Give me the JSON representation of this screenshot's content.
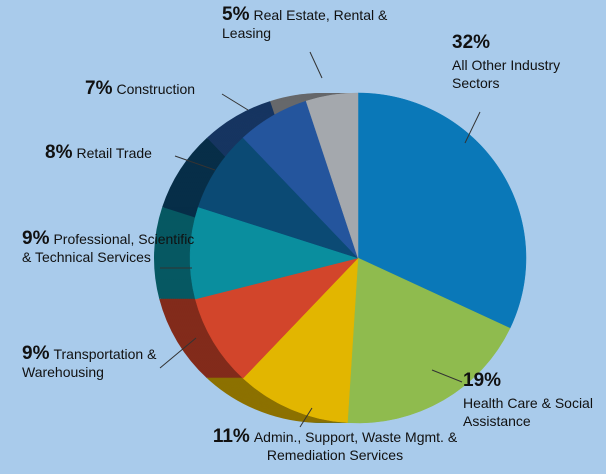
{
  "chart_data": {
    "type": "pie",
    "categories": [
      "All Other Industry Sectors",
      "Health Care & Social Assistance",
      "Admin., Support, Waste Mgmt. & Remediation Services",
      "Transportation & Warehousing",
      "Professional, Scientific & Technical Services",
      "Retail Trade",
      "Construction",
      "Real Estate, Rental & Leasing"
    ],
    "values": [
      32,
      19,
      11,
      9,
      9,
      8,
      7,
      5
    ],
    "value_labels": [
      "32%",
      "19%",
      "11%",
      "9%",
      "9%",
      "8%",
      "7%",
      "5%"
    ],
    "colors": [
      "#0a78b8",
      "#8fbb4e",
      "#e2b600",
      "#d2452b",
      "#0a8e9e",
      "#0b4a74",
      "#24559d",
      "#a4a8ad"
    ]
  }
}
